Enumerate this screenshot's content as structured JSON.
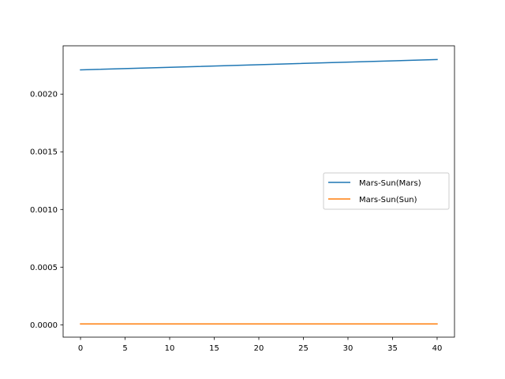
{
  "chart_data": {
    "type": "line",
    "title": "",
    "xlabel": "",
    "ylabel": "",
    "xlim": [
      -1.95,
      41.95
    ],
    "ylim": [
      -0.000107,
      0.002419
    ],
    "x_ticks": [
      0,
      5,
      10,
      15,
      20,
      25,
      30,
      35,
      40
    ],
    "x_tick_labels": [
      "0",
      "5",
      "10",
      "15",
      "20",
      "25",
      "30",
      "35",
      "40"
    ],
    "y_ticks": [
      0.0,
      0.0005,
      0.001,
      0.0015,
      0.002
    ],
    "y_tick_labels": [
      "0.0000",
      "0.0005",
      "0.0010",
      "0.0015",
      "0.0020"
    ],
    "grid": false,
    "legend_position": "center-right",
    "series": [
      {
        "name": "Mars-Sun(Mars)",
        "color": "#1f77b4",
        "x": [
          0,
          40
        ],
        "y": [
          0.00221,
          0.0023
        ]
      },
      {
        "name": "Mars-Sun(Sun)",
        "color": "#ff7f0e",
        "x": [
          0,
          40
        ],
        "y": [
          7.5e-06,
          7.7e-06
        ]
      }
    ]
  }
}
